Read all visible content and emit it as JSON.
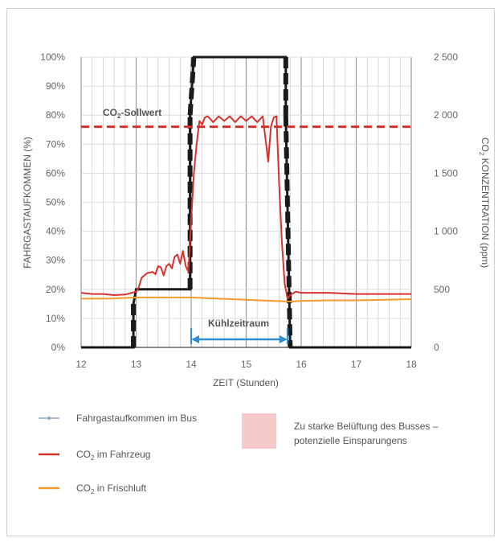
{
  "chart_data": {
    "type": "line",
    "xlabel": "ZEIT (Stunden)",
    "ylabel_left": "FAHRGASTAUFKOMMEN (%)",
    "ylabel_right_prefix": "CO",
    "ylabel_right_sub": "2",
    "ylabel_right_suffix": " KONZENTRATION (ppm)",
    "x_ticks": [
      "12",
      "13",
      "14",
      "15",
      "16",
      "17",
      "18"
    ],
    "y_left_ticks": [
      "0%",
      "10%",
      "20%",
      "30%",
      "40%",
      "50%",
      "60%",
      "70%",
      "80%",
      "90%",
      "100%"
    ],
    "y_right_ticks": [
      "0",
      "500",
      "1 000",
      "1 500",
      "2 000",
      "2 500"
    ],
    "xlim": [
      12,
      18
    ],
    "ylim_left": [
      0,
      100
    ],
    "ylim_right": [
      0,
      2500
    ],
    "grid": true,
    "setpoint": {
      "label_prefix": "CO",
      "label_sub": "2",
      "label_suffix": "-Sollwert",
      "value_ppm": 1900,
      "color": "#d6322e"
    },
    "cooling": {
      "label": "Kühlzeitraum",
      "x_start": 14.0,
      "x_end": 15.75,
      "color": "#2f8fd0"
    },
    "series": [
      {
        "name": "Fahrgastaufkommen im Bus",
        "axis": "left",
        "color": "#1a1a1a",
        "x": [
          12,
          12.95,
          12.95,
          13.0,
          13.0,
          13.98,
          13.98,
          14.05,
          14.05,
          15.72,
          15.72,
          15.8,
          15.8,
          18
        ],
        "y": [
          0,
          0,
          15,
          20,
          20,
          20,
          80,
          100,
          100,
          100,
          80,
          0,
          0,
          0
        ]
      },
      {
        "name": "CO₂ im Fahrzeug",
        "axis": "right",
        "color": "#d6322e",
        "x": [
          12,
          12.2,
          12.4,
          12.6,
          12.8,
          13.0,
          13.05,
          13.1,
          13.2,
          13.3,
          13.35,
          13.4,
          13.45,
          13.5,
          13.55,
          13.6,
          13.65,
          13.7,
          13.75,
          13.8,
          13.85,
          13.9,
          13.95,
          14.0,
          14.05,
          14.1,
          14.15,
          14.2,
          14.25,
          14.3,
          14.4,
          14.5,
          14.6,
          14.7,
          14.8,
          14.9,
          15.0,
          15.1,
          15.2,
          15.3,
          15.35,
          15.4,
          15.45,
          15.5,
          15.55,
          15.6,
          15.65,
          15.7,
          15.75,
          15.8,
          15.9,
          16.0,
          16.5,
          17.0,
          17.5,
          18.0
        ],
        "y": [
          470,
          460,
          460,
          450,
          455,
          480,
          520,
          600,
          640,
          650,
          630,
          700,
          690,
          620,
          700,
          720,
          680,
          780,
          800,
          720,
          830,
          700,
          650,
          1100,
          1500,
          1750,
          1950,
          1920,
          1980,
          1990,
          1940,
          1990,
          1950,
          1990,
          1940,
          1990,
          1950,
          1990,
          1940,
          1990,
          1800,
          1600,
          1900,
          1980,
          1990,
          1400,
          900,
          550,
          420,
          450,
          480,
          470,
          470,
          460,
          460,
          460
        ]
      },
      {
        "name": "CO₂ in Frischluft",
        "axis": "right",
        "color": "#f39a2b",
        "x": [
          12,
          12.5,
          13.0,
          13.5,
          14.0,
          14.5,
          15.0,
          15.5,
          15.8,
          16.0,
          16.5,
          17.0,
          17.5,
          18.0
        ],
        "y": [
          420,
          420,
          430,
          430,
          430,
          420,
          410,
          400,
          395,
          400,
          405,
          405,
          410,
          415
        ]
      }
    ],
    "legend": {
      "passengers": "Fahrgastaufkommen im Bus",
      "co2_vehicle_prefix": "CO",
      "co2_vehicle_sub": "2",
      "co2_vehicle_suffix": " im Fahrzeug",
      "co2_fresh_prefix": "CO",
      "co2_fresh_sub": "2",
      "co2_fresh_suffix": " in Frischluft",
      "overvent_line1": "Zu starke Belüftung des Busses –",
      "overvent_line2": "potenzielle Einsparungens",
      "overvent_color": "#f6c9c9"
    }
  }
}
